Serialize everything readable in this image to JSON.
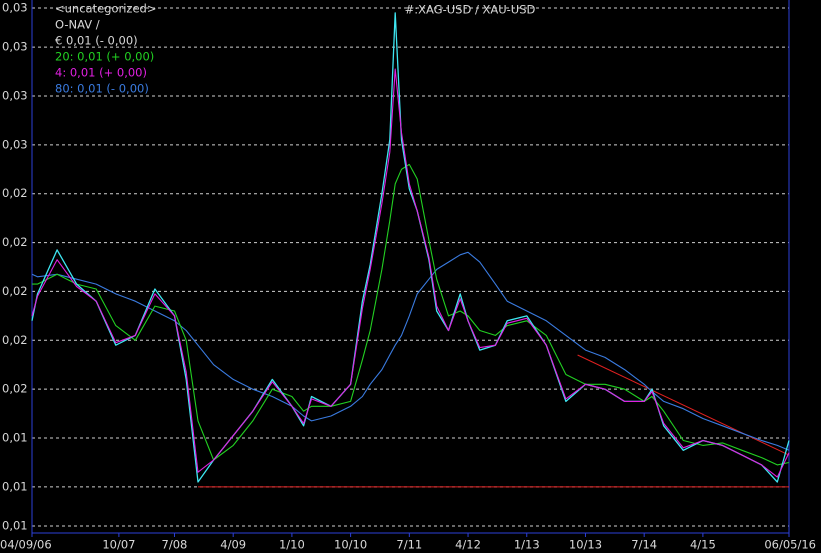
{
  "chart_data": {
    "type": "line",
    "title": "#:XAG-USD / XAU-USD",
    "header": [
      "<uncategorized>",
      "O-NAV /"
    ],
    "x": [
      2006.68,
      2006.75,
      2007.0,
      2007.25,
      2007.5,
      2007.75,
      2008.0,
      2008.25,
      2008.5,
      2008.65,
      2008.8,
      2009.0,
      2009.25,
      2009.5,
      2009.75,
      2010.0,
      2010.15,
      2010.25,
      2010.5,
      2010.75,
      2010.9,
      2011.0,
      2011.15,
      2011.25,
      2011.32,
      2011.4,
      2011.5,
      2011.6,
      2011.75,
      2011.85,
      2012.0,
      2012.15,
      2012.25,
      2012.4,
      2012.6,
      2012.75,
      2013.0,
      2013.25,
      2013.5,
      2013.75,
      2014.0,
      2014.25,
      2014.5,
      2014.6,
      2014.75,
      2015.0,
      2015.25,
      2015.5,
      2015.75,
      2016.0,
      2016.2,
      2016.35
    ],
    "series": [
      {
        "name": "€ 0,01 (- 0,00)",
        "color": "#3ee6f2",
        "values": [
          0.0193,
          0.0204,
          0.0222,
          0.0208,
          0.0201,
          0.0183,
          0.0187,
          0.0206,
          0.0195,
          0.0169,
          0.0127,
          0.0136,
          0.0146,
          0.0156,
          0.0169,
          0.0158,
          0.015,
          0.0162,
          0.0158,
          0.0167,
          0.0201,
          0.0216,
          0.0245,
          0.0267,
          0.0319,
          0.0267,
          0.0247,
          0.0238,
          0.0218,
          0.0197,
          0.0189,
          0.0204,
          0.0193,
          0.0181,
          0.0183,
          0.0193,
          0.0195,
          0.0183,
          0.016,
          0.0167,
          0.0165,
          0.016,
          0.016,
          0.0165,
          0.015,
          0.014,
          0.0144,
          0.0142,
          0.0138,
          0.0134,
          0.0127,
          0.0144
        ]
      },
      {
        "name": "20: 0,01 (+ 0,00)",
        "color": "#22d022",
        "values": [
          0.0208,
          0.0208,
          0.0212,
          0.0208,
          0.0206,
          0.0191,
          0.0185,
          0.0199,
          0.0197,
          0.0185,
          0.0152,
          0.0136,
          0.0142,
          0.0152,
          0.0165,
          0.0162,
          0.0156,
          0.0158,
          0.0158,
          0.016,
          0.0177,
          0.0189,
          0.0214,
          0.0234,
          0.0249,
          0.0255,
          0.0257,
          0.0251,
          0.0226,
          0.021,
          0.0195,
          0.0197,
          0.0195,
          0.0189,
          0.0187,
          0.0191,
          0.0193,
          0.0187,
          0.0171,
          0.0167,
          0.0167,
          0.0165,
          0.016,
          0.0162,
          0.0156,
          0.0144,
          0.0142,
          0.0143,
          0.014,
          0.0137,
          0.0134,
          0.0135
        ]
      },
      {
        "name": "4: 0,01 (+ 0,00)",
        "color": "#e020e0",
        "values": [
          0.0195,
          0.0203,
          0.0218,
          0.0207,
          0.0201,
          0.0184,
          0.0187,
          0.0204,
          0.0195,
          0.0172,
          0.0131,
          0.0136,
          0.0146,
          0.0156,
          0.0168,
          0.0158,
          0.0151,
          0.0161,
          0.0158,
          0.0167,
          0.0198,
          0.0214,
          0.0241,
          0.0262,
          0.0296,
          0.027,
          0.0249,
          0.0238,
          0.0219,
          0.0199,
          0.0189,
          0.0202,
          0.0193,
          0.0182,
          0.0183,
          0.0192,
          0.0194,
          0.0183,
          0.0161,
          0.0167,
          0.0165,
          0.016,
          0.016,
          0.0164,
          0.0151,
          0.0141,
          0.0144,
          0.0142,
          0.0138,
          0.0134,
          0.0129,
          0.0139
        ]
      },
      {
        "name": "80: 0,01 (- 0,00)",
        "color": "#3a7be0",
        "values": [
          0.0212,
          0.0211,
          0.0212,
          0.021,
          0.0208,
          0.0204,
          0.0201,
          0.0197,
          0.0193,
          0.0189,
          0.0183,
          0.0175,
          0.0169,
          0.0165,
          0.0162,
          0.0158,
          0.0154,
          0.0152,
          0.0154,
          0.0158,
          0.0162,
          0.0167,
          0.0173,
          0.0179,
          0.0183,
          0.0187,
          0.0195,
          0.0204,
          0.021,
          0.0214,
          0.0217,
          0.022,
          0.0221,
          0.0217,
          0.0208,
          0.0201,
          0.0197,
          0.0193,
          0.0187,
          0.0181,
          0.0178,
          0.0173,
          0.0167,
          0.0164,
          0.016,
          0.0157,
          0.0153,
          0.015,
          0.0147,
          0.0144,
          0.0142,
          0.014
        ]
      }
    ],
    "trendlines": [
      {
        "color": "#e02020",
        "x": [
          2008.8,
          2016.35
        ],
        "values": [
          0.0125,
          0.0125
        ]
      },
      {
        "color": "#e02020",
        "x": [
          2013.65,
          2016.35
        ],
        "values": [
          0.0179,
          0.0138
        ]
      }
    ],
    "xlim": [
      2006.68,
      2016.35
    ],
    "xticks": [
      {
        "value": 2006.68,
        "label": "04/09/06"
      },
      {
        "value": 2007.79,
        "label": "10/07"
      },
      {
        "value": 2008.5,
        "label": "7/08"
      },
      {
        "value": 2009.25,
        "label": "4/09"
      },
      {
        "value": 2010.0,
        "label": "1/10"
      },
      {
        "value": 2010.75,
        "label": "10/10"
      },
      {
        "value": 2011.5,
        "label": "7/11"
      },
      {
        "value": 2012.25,
        "label": "4/12"
      },
      {
        "value": 2013.0,
        "label": "1/13"
      },
      {
        "value": 2013.75,
        "label": "10/13"
      },
      {
        "value": 2014.5,
        "label": "7/14"
      },
      {
        "value": 2015.25,
        "label": "4/15"
      },
      {
        "value": 2016.35,
        "label": "06/05/16"
      }
    ],
    "ylim": [
      0.0109,
      0.0321
    ],
    "yticks": [
      {
        "value": 0.0321,
        "label": "0,03"
      },
      {
        "value": 0.0305,
        "label": "0,03"
      },
      {
        "value": 0.0285,
        "label": "0,03"
      },
      {
        "value": 0.0265,
        "label": "0,03"
      },
      {
        "value": 0.0245,
        "label": "0,02"
      },
      {
        "value": 0.0225,
        "label": "0,02"
      },
      {
        "value": 0.0205,
        "label": "0,02"
      },
      {
        "value": 0.0185,
        "label": "0,02"
      },
      {
        "value": 0.0165,
        "label": "0,02"
      },
      {
        "value": 0.0145,
        "label": "0,01"
      },
      {
        "value": 0.0125,
        "label": "0,01"
      },
      {
        "value": 0.0109,
        "label": "0,01"
      }
    ],
    "grid": true
  }
}
